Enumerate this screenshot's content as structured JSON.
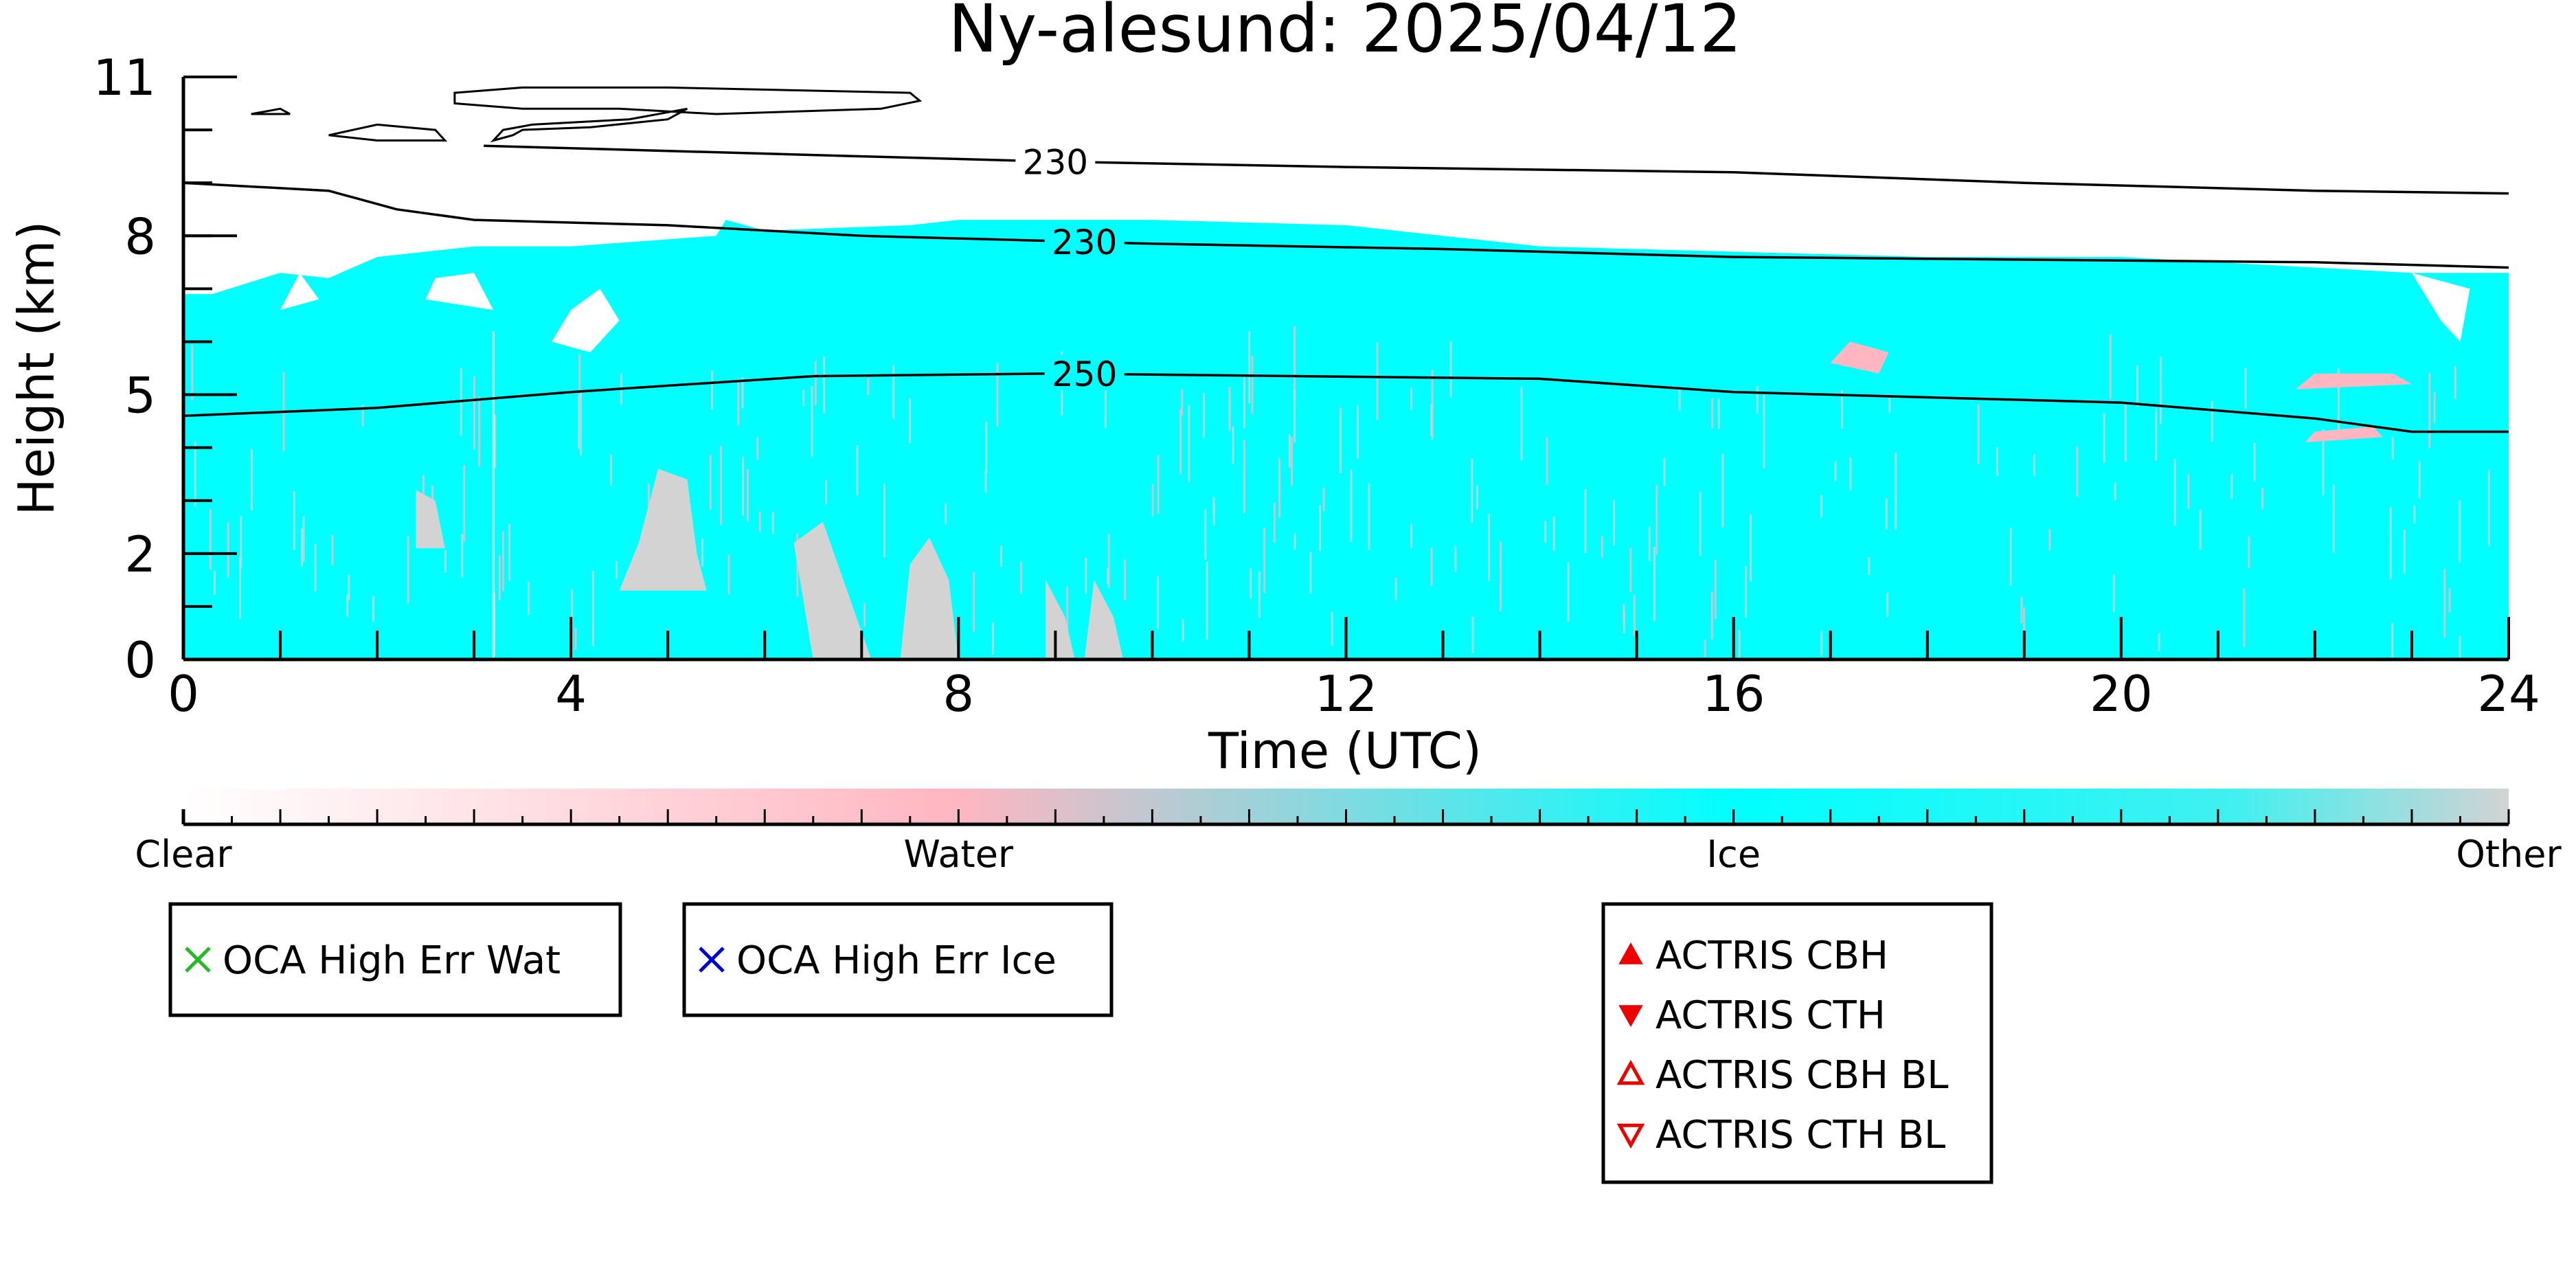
{
  "chart_data": {
    "type": "heatmap",
    "title": "Ny-alesund: 2025/04/12",
    "xlabel": "Time (UTC)",
    "ylabel": "Height (km)",
    "xlim": [
      0,
      24
    ],
    "ylim": [
      0,
      11
    ],
    "x_ticks": [
      "0",
      "4",
      "8",
      "12",
      "16",
      "20",
      "24"
    ],
    "y_ticks": [
      "0",
      "2",
      "5",
      "8",
      "11"
    ],
    "grid": false,
    "colorbar": {
      "position": "bottom",
      "labels": [
        "Clear",
        "Water",
        "Ice",
        "Other"
      ],
      "colors": {
        "clear": "#ffffff",
        "water": "#ffb6c1",
        "ice": "#00ffff",
        "other": "#d3d3d3"
      }
    },
    "contours": [
      {
        "level": "230",
        "points": [
          [
            3.1,
            9.7
          ],
          [
            7.0,
            9.5
          ],
          [
            9.0,
            9.4
          ],
          [
            12.0,
            9.3
          ],
          [
            16.0,
            9.2
          ],
          [
            19.0,
            9.0
          ],
          [
            22.0,
            8.85
          ],
          [
            24.0,
            8.8
          ]
        ]
      },
      {
        "level": "230",
        "points": [
          [
            0,
            9.0
          ],
          [
            1.5,
            8.85
          ],
          [
            2.2,
            8.5
          ],
          [
            3.0,
            8.3
          ],
          [
            5.0,
            8.2
          ],
          [
            7.0,
            8.0
          ],
          [
            10.0,
            7.85
          ],
          [
            13.0,
            7.75
          ],
          [
            16.0,
            7.6
          ],
          [
            19.0,
            7.55
          ],
          [
            22.0,
            7.5
          ],
          [
            24.0,
            7.4
          ]
        ]
      },
      {
        "level": "250",
        "points": [
          [
            0,
            4.6
          ],
          [
            2.0,
            4.75
          ],
          [
            4.0,
            5.05
          ],
          [
            6.5,
            5.35
          ],
          [
            9.0,
            5.4
          ],
          [
            14.0,
            5.3
          ],
          [
            16.0,
            5.05
          ],
          [
            20.0,
            4.85
          ],
          [
            22.0,
            4.55
          ],
          [
            23.0,
            4.3
          ],
          [
            24.0,
            4.3
          ]
        ]
      }
    ],
    "legends": [
      {
        "entries": [
          {
            "label": "OCA High Err Wat",
            "marker": "x",
            "color": "#22bb22"
          }
        ]
      },
      {
        "entries": [
          {
            "label": "OCA High Err Ice",
            "marker": "x",
            "color": "#0000dd"
          }
        ]
      },
      {
        "entries": [
          {
            "label": "ACTRIS CBH",
            "marker": "triangle-up-filled",
            "color": "#ee0000"
          },
          {
            "label": "ACTRIS CTH",
            "marker": "triangle-down-filled",
            "color": "#ee0000"
          },
          {
            "label": "ACTRIS CBH BL",
            "marker": "triangle-up-open",
            "color": "#ee0000"
          },
          {
            "label": "ACTRIS CTH BL",
            "marker": "triangle-down-open",
            "color": "#ee0000"
          }
        ]
      }
    ],
    "regions": {
      "ice": [
        [
          0,
          0
        ],
        [
          24,
          0
        ],
        [
          24,
          7.3
        ],
        [
          23.0,
          7.3
        ],
        [
          22.0,
          7.4
        ],
        [
          20.0,
          7.6
        ],
        [
          18.0,
          7.6
        ],
        [
          16.0,
          7.7
        ],
        [
          14.0,
          7.8
        ],
        [
          12.0,
          8.2
        ],
        [
          10.0,
          8.3
        ],
        [
          8.0,
          8.3
        ],
        [
          7.5,
          8.2
        ],
        [
          6.0,
          8.1
        ],
        [
          5.6,
          8.3
        ],
        [
          5.5,
          8.0
        ],
        [
          4.0,
          7.8
        ],
        [
          3.0,
          7.8
        ],
        [
          2.0,
          7.6
        ],
        [
          1.5,
          7.2
        ],
        [
          1.0,
          7.3
        ],
        [
          0.3,
          6.9
        ],
        [
          0,
          6.9
        ]
      ],
      "other": [
        [
          [
            4.5,
            1.3
          ],
          [
            4.7,
            2.2
          ],
          [
            4.9,
            3.6
          ],
          [
            5.2,
            3.4
          ],
          [
            5.3,
            2.0
          ],
          [
            5.4,
            1.3
          ]
        ],
        [
          [
            6.3,
            2.2
          ],
          [
            6.6,
            2.6
          ],
          [
            7.1,
            0
          ],
          [
            6.5,
            0
          ]
        ],
        [
          [
            7.4,
            0
          ],
          [
            7.5,
            1.8
          ],
          [
            7.7,
            2.3
          ],
          [
            7.9,
            1.5
          ],
          [
            8.0,
            0
          ]
        ],
        [
          [
            8.9,
            0
          ],
          [
            8.9,
            1.5
          ],
          [
            9.1,
            0.8
          ],
          [
            9.2,
            0
          ]
        ],
        [
          [
            9.3,
            0
          ],
          [
            9.4,
            1.5
          ],
          [
            9.6,
            0.8
          ],
          [
            9.7,
            0
          ]
        ],
        [
          [
            2.4,
            2.1
          ],
          [
            2.4,
            3.2
          ],
          [
            2.6,
            3.0
          ],
          [
            2.7,
            2.1
          ]
        ]
      ],
      "water": [
        [
          [
            21.8,
            5.1
          ],
          [
            22.0,
            5.4
          ],
          [
            22.8,
            5.4
          ],
          [
            23.0,
            5.2
          ]
        ],
        [
          [
            17.0,
            5.6
          ],
          [
            17.2,
            6.0
          ],
          [
            17.6,
            5.8
          ],
          [
            17.5,
            5.4
          ]
        ],
        [
          [
            21.9,
            4.1
          ],
          [
            22.0,
            4.3
          ],
          [
            22.6,
            4.4
          ],
          [
            22.7,
            4.2
          ]
        ]
      ],
      "clear_holes": [
        [
          [
            3.8,
            6.0
          ],
          [
            4.0,
            6.6
          ],
          [
            4.3,
            7.0
          ],
          [
            4.5,
            6.4
          ],
          [
            4.2,
            5.8
          ]
        ],
        [
          [
            1.0,
            6.6
          ],
          [
            1.2,
            7.3
          ],
          [
            1.4,
            6.8
          ]
        ],
        [
          [
            2.5,
            6.8
          ],
          [
            2.6,
            7.2
          ],
          [
            3.0,
            7.3
          ],
          [
            3.2,
            6.6
          ]
        ],
        [
          [
            23.0,
            7.3
          ],
          [
            23.3,
            6.4
          ],
          [
            23.5,
            6.0
          ],
          [
            23.6,
            7.0
          ]
        ]
      ],
      "high_cloud_outlines": [
        [
          [
            0.7,
            10.3
          ],
          [
            1.0,
            10.4
          ],
          [
            1.1,
            10.3
          ]
        ],
        [
          [
            1.5,
            9.9
          ],
          [
            2.0,
            10.1
          ],
          [
            2.6,
            10.0
          ],
          [
            2.7,
            9.8
          ],
          [
            2.0,
            9.8
          ]
        ],
        [
          [
            2.8,
            10.7
          ],
          [
            3.5,
            10.8
          ],
          [
            5.0,
            10.8
          ],
          [
            7.5,
            10.7
          ],
          [
            7.6,
            10.55
          ],
          [
            7.2,
            10.4
          ],
          [
            5.5,
            10.3
          ],
          [
            4.5,
            10.4
          ],
          [
            3.5,
            10.4
          ],
          [
            2.8,
            10.5
          ]
        ],
        [
          [
            3.2,
            9.8
          ],
          [
            3.3,
            10.0
          ],
          [
            3.6,
            10.1
          ],
          [
            4.6,
            10.2
          ],
          [
            5.2,
            10.4
          ],
          [
            5.0,
            10.2
          ],
          [
            4.2,
            10.05
          ],
          [
            3.5,
            10.0
          ],
          [
            3.4,
            9.9
          ]
        ]
      ]
    }
  }
}
